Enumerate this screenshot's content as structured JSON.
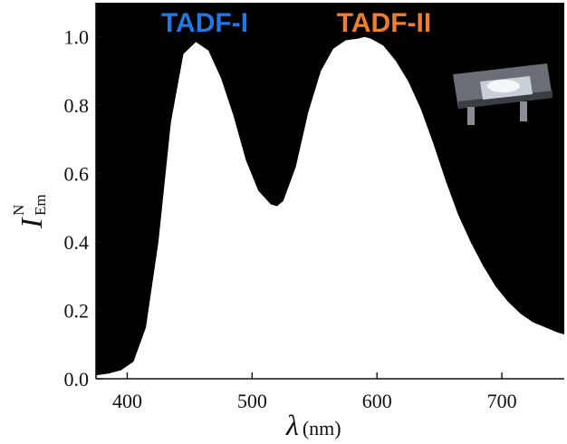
{
  "chart_data": {
    "type": "area",
    "x": [
      375,
      385,
      395,
      405,
      415,
      425,
      435,
      445,
      455,
      465,
      475,
      485,
      495,
      505,
      515,
      520,
      525,
      535,
      545,
      555,
      565,
      575,
      585,
      590,
      595,
      605,
      615,
      625,
      635,
      645,
      655,
      665,
      675,
      685,
      695,
      705,
      715,
      725,
      735,
      745,
      750
    ],
    "series": [
      {
        "values": [
          0.01,
          0.015,
          0.025,
          0.05,
          0.15,
          0.4,
          0.75,
          0.95,
          0.985,
          0.96,
          0.88,
          0.77,
          0.64,
          0.55,
          0.51,
          0.505,
          0.52,
          0.62,
          0.78,
          0.9,
          0.965,
          0.99,
          0.995,
          1.0,
          0.995,
          0.975,
          0.93,
          0.87,
          0.79,
          0.69,
          0.58,
          0.48,
          0.4,
          0.33,
          0.27,
          0.225,
          0.19,
          0.165,
          0.15,
          0.135,
          0.13
        ],
        "fill": "#ffffff"
      }
    ],
    "xlabel": "λ",
    "xlabel_unit": "(nm)",
    "ylabel_main": "I",
    "ylabel_sup": "N",
    "ylabel_sub": "Em",
    "xlim": [
      375,
      750
    ],
    "ylim": [
      0,
      1.1
    ],
    "x_ticks": [
      "400",
      "500",
      "600",
      "700"
    ],
    "y_ticks": [
      "0.0",
      "0.2",
      "0.4",
      "0.6",
      "0.8",
      "1.0"
    ],
    "plot_background": "#000000",
    "grid": false,
    "annotations": [
      {
        "text": "TADF-I",
        "color": "#1e78e6"
      },
      {
        "text": "TADF-II",
        "color": "#f07d2d"
      }
    ]
  }
}
